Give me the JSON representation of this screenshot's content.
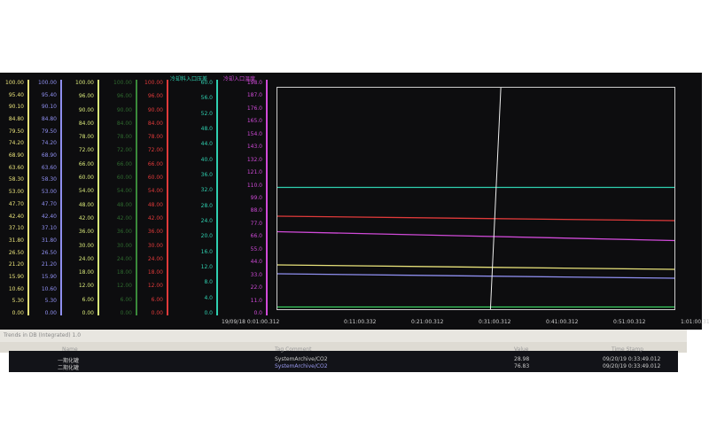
{
  "headers": {
    "cyan": "冷却料入口压差",
    "magenta": "冷却入口温度"
  },
  "colors": {
    "col1": "#e8e27a",
    "col2": "#8f8ff0",
    "col3": "#d8e87a",
    "col4": "#3a8a3a",
    "col5": "#e03a3a",
    "cyan": "#2fd0b0",
    "magenta": "#d04ad8"
  },
  "scales": {
    "col1": [
      "100.00",
      "95.40",
      "90.10",
      "84.80",
      "79.50",
      "74.20",
      "68.90",
      "63.60",
      "58.30",
      "53.00",
      "47.70",
      "42.40",
      "37.10",
      "31.80",
      "26.50",
      "21.20",
      "15.90",
      "10.60",
      "5.30",
      "0.00"
    ],
    "col2": [
      "100.00",
      "95.40",
      "90.10",
      "84.80",
      "79.50",
      "74.20",
      "68.90",
      "63.60",
      "58.30",
      "53.00",
      "47.70",
      "42.40",
      "37.10",
      "31.80",
      "26.50",
      "21.20",
      "15.90",
      "10.60",
      "5.30",
      "0.00"
    ],
    "col3": [
      "100.00",
      "96.00",
      "90.00",
      "84.00",
      "78.00",
      "72.00",
      "66.00",
      "60.00",
      "54.00",
      "48.00",
      "42.00",
      "36.00",
      "30.00",
      "24.00",
      "18.00",
      "12.00",
      "6.00",
      "0.00"
    ],
    "col4": [
      "100.00",
      "96.00",
      "90.00",
      "84.00",
      "78.00",
      "72.00",
      "66.00",
      "60.00",
      "54.00",
      "48.00",
      "42.00",
      "36.00",
      "30.00",
      "24.00",
      "18.00",
      "12.00",
      "6.00",
      "0.00"
    ],
    "col5": [
      "100.00",
      "96.00",
      "90.00",
      "84.00",
      "78.00",
      "72.00",
      "66.00",
      "60.00",
      "54.00",
      "48.00",
      "42.00",
      "36.00",
      "30.00",
      "24.00",
      "18.00",
      "12.00",
      "6.00",
      "0.00"
    ],
    "cyan": [
      "60.0",
      "56.0",
      "52.0",
      "48.0",
      "44.0",
      "40.0",
      "36.0",
      "32.0",
      "28.0",
      "24.0",
      "20.0",
      "16.0",
      "12.0",
      "8.0",
      "4.0",
      "0.0"
    ],
    "magenta": [
      "198.0",
      "187.0",
      "176.0",
      "165.0",
      "154.0",
      "143.0",
      "132.0",
      "121.0",
      "110.0",
      "99.0",
      "88.0",
      "77.0",
      "66.0",
      "55.0",
      "44.0",
      "33.0",
      "22.0",
      "11.0",
      "0.0"
    ]
  },
  "time_axis": [
    "19/09/18  0:01:00.312",
    "0:11:00.332",
    "0:21:00.312",
    "0:31:00.312",
    "0:41:00.312",
    "0:51:00.312",
    "1:01:00.312"
  ],
  "chart_data": {
    "type": "line",
    "ylim": [
      0,
      100
    ],
    "cursor_position_fraction": 0.55,
    "series": [
      {
        "color": "#2fd0b0",
        "values": [
          55,
          55
        ]
      },
      {
        "color": "#e03a3a",
        "values": [
          42,
          40
        ]
      },
      {
        "color": "#d04ad8",
        "values": [
          35,
          31
        ]
      },
      {
        "color": "#e8e27a",
        "values": [
          20,
          18
        ]
      },
      {
        "color": "#8f8ff0",
        "values": [
          16,
          14
        ]
      },
      {
        "color": "#3ad060",
        "values": [
          1,
          1
        ]
      }
    ]
  },
  "bottom": {
    "title": "Trends in DB (Integrated) 1.0",
    "columns": [
      "Name",
      "Tag Comment",
      "Value",
      "Time Stamp"
    ],
    "rows": [
      {
        "name": "一期化罐",
        "tag": "SystemArchive/CO2",
        "value": "28.98",
        "time": "09/20/19 0:33:49.012"
      },
      {
        "name": "二期化罐",
        "tag": "SystemArchive/CO2",
        "value": "76.83",
        "time": "09/20/19 0:33:49.012"
      }
    ]
  }
}
